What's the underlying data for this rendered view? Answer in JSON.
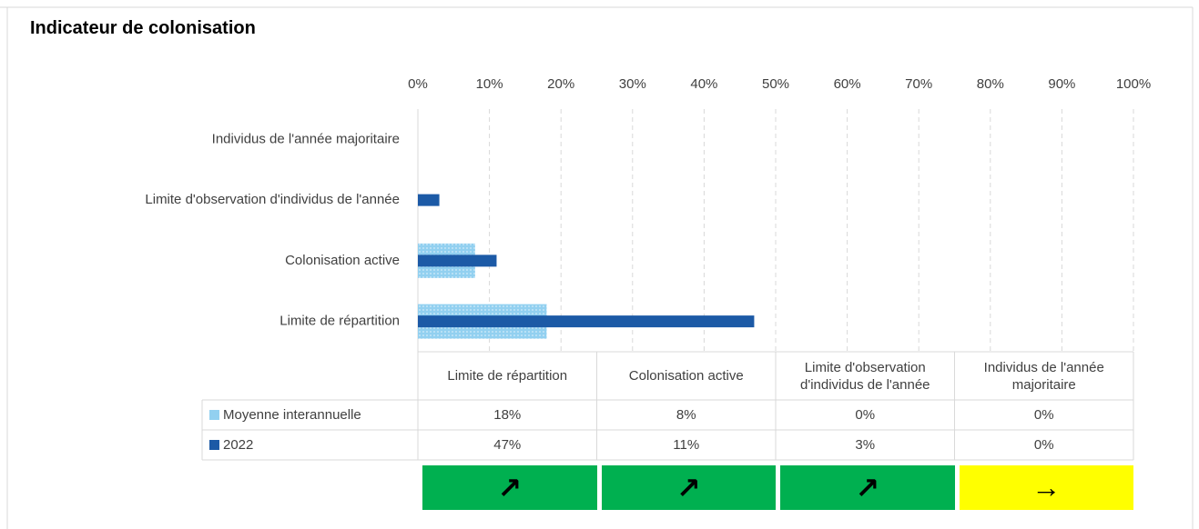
{
  "chart_data": {
    "type": "hbar",
    "title": "Indicateur de colonisation",
    "categories": [
      "Limite de répartition",
      "Colonisation active",
      "Limite d'observation d'individus de l'année",
      "Individus de l'année majoritaire"
    ],
    "series": [
      {
        "name": "Moyenne interannuelle",
        "color": "#92d0f0",
        "values": [
          18,
          8,
          0,
          0
        ],
        "value_labels": [
          "18%",
          "8%",
          "0%",
          "0%"
        ]
      },
      {
        "name": "2022",
        "color": "#1c5aa6",
        "values": [
          47,
          11,
          3,
          0
        ],
        "value_labels": [
          "47%",
          "11%",
          "3%",
          "0%"
        ]
      }
    ],
    "xlim": [
      0,
      100
    ],
    "xticks": [
      {
        "value": 0,
        "label": "0%"
      },
      {
        "value": 10,
        "label": "10%"
      },
      {
        "value": 20,
        "label": "20%"
      },
      {
        "value": 30,
        "label": "30%"
      },
      {
        "value": 40,
        "label": "40%"
      },
      {
        "value": 50,
        "label": "50%"
      },
      {
        "value": 60,
        "label": "60%"
      },
      {
        "value": 70,
        "label": "70%"
      },
      {
        "value": 80,
        "label": "80%"
      },
      {
        "value": 90,
        "label": "90%"
      },
      {
        "value": 100,
        "label": "100%"
      }
    ],
    "grid": true,
    "trend_arrows": [
      "↗",
      "↗",
      "↗",
      "→"
    ],
    "trend_colors": [
      "#00b050",
      "#00b050",
      "#00b050",
      "#ffff00"
    ]
  }
}
